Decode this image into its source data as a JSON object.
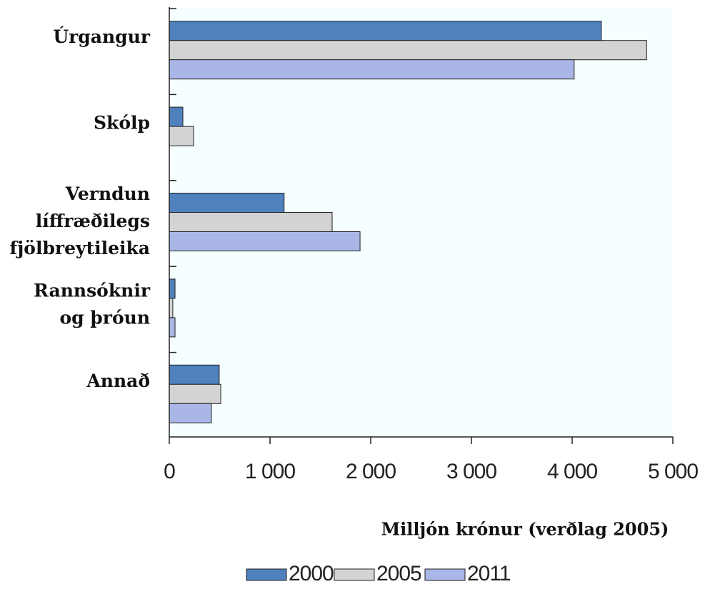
{
  "chart_data": {
    "type": "barh",
    "categories": [
      "Úrgangur",
      "Skólp",
      "Verndun\nlíffræðilegs\nfjölbreytileika",
      "Rannsóknir\nog þróun",
      "Annað"
    ],
    "series": [
      {
        "name": "2000",
        "color": "#4f81bd",
        "values": [
          4290,
          135,
          1140,
          57,
          496
        ]
      },
      {
        "name": "2005",
        "color": "#d3d3d3",
        "values": [
          4740,
          241,
          1617,
          35,
          511
        ]
      },
      {
        "name": "2011",
        "color": "#a9b6e6",
        "values": [
          4020,
          0,
          1894,
          57,
          418
        ]
      }
    ],
    "xlim": [
      0,
      5000
    ],
    "xticks": [
      0,
      {
        "value": 1000,
        "label": "1 000"
      },
      {
        "value": 2000,
        "label": "2 000"
      },
      {
        "value": 3000,
        "label": "3 000"
      },
      {
        "value": 4000,
        "label": "4 000"
      },
      {
        "value": 5000,
        "label": "5 000"
      }
    ],
    "xlabel": "Milljón krónur (verðlag 2005)",
    "background": "#f5ffff"
  }
}
